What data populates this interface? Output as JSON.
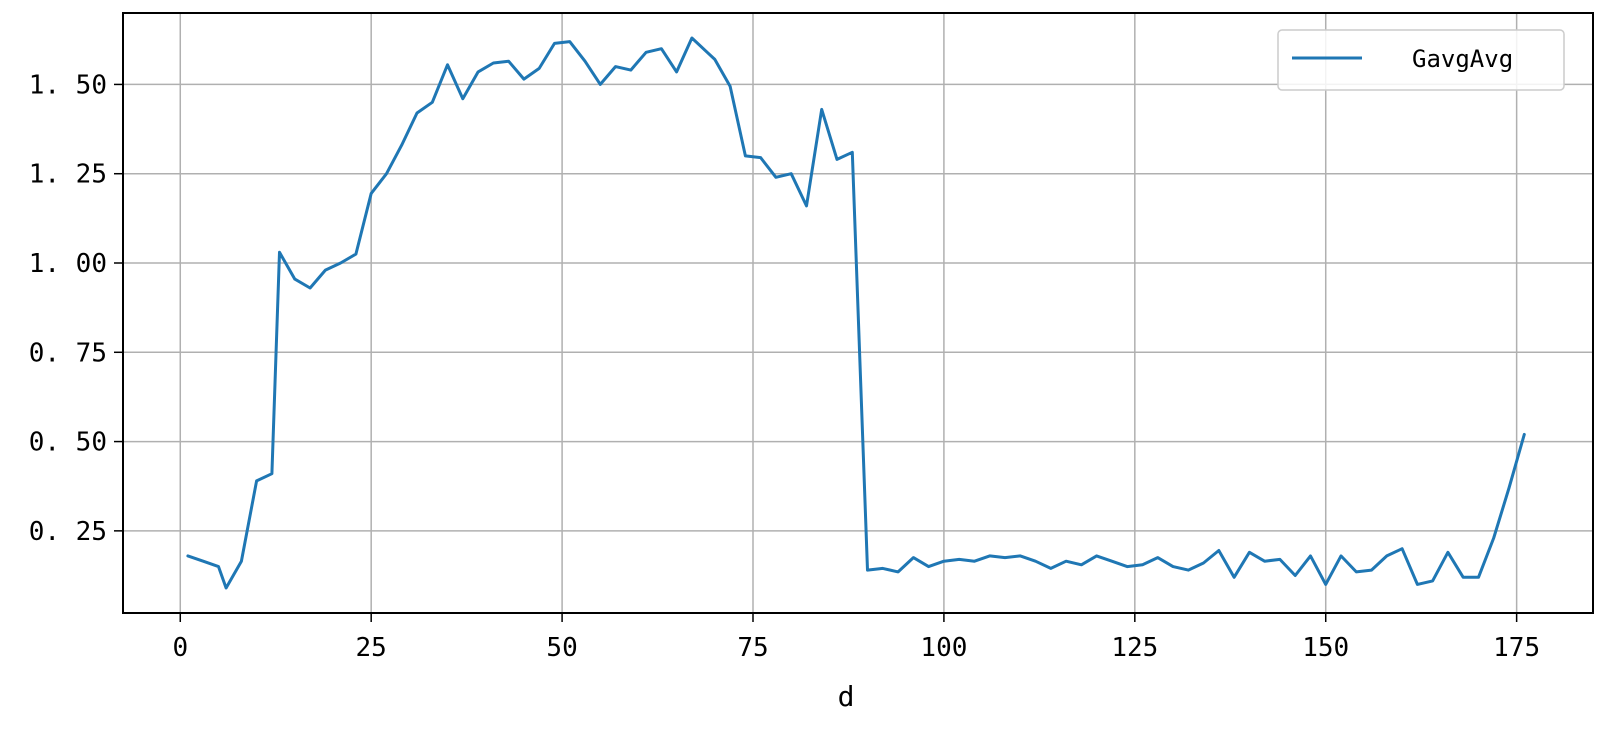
{
  "chart_data": {
    "type": "line",
    "title": "",
    "xlabel": "d",
    "ylabel": "",
    "xlim": [
      -7.5,
      185
    ],
    "ylim": [
      0.02,
      1.7
    ],
    "x_ticks": [
      0,
      25,
      50,
      75,
      100,
      125,
      150,
      175
    ],
    "x_tick_labels": [
      "0",
      "25",
      "50",
      "75",
      "100",
      "125",
      "150",
      "175"
    ],
    "y_ticks": [
      0.25,
      0.5,
      0.75,
      1.0,
      1.25,
      1.5
    ],
    "y_tick_labels": [
      "0. 25",
      "0. 50",
      "0. 75",
      "1. 00",
      "1. 25",
      "1. 50"
    ],
    "grid": true,
    "legend_position": "top-right",
    "series": [
      {
        "name": "GavgAvg",
        "color": "#1f77b4",
        "x": [
          1,
          3,
          5,
          6,
          8,
          10,
          12,
          13,
          15,
          17,
          19,
          21,
          23,
          25,
          27,
          29,
          31,
          33,
          35,
          37,
          39,
          41,
          43,
          45,
          47,
          49,
          51,
          53,
          55,
          57,
          59,
          61,
          63,
          65,
          67,
          69,
          70,
          72,
          74,
          76,
          78,
          80,
          82,
          84,
          86,
          88,
          90,
          92,
          94,
          96,
          98,
          100,
          102,
          104,
          106,
          108,
          110,
          112,
          114,
          116,
          118,
          120,
          122,
          124,
          126,
          128,
          130,
          132,
          134,
          136,
          138,
          140,
          142,
          144,
          146,
          148,
          150,
          152,
          154,
          156,
          158,
          160,
          162,
          164,
          166,
          168,
          170,
          172,
          174,
          176
        ],
        "values": [
          0.18,
          0.165,
          0.15,
          0.09,
          0.165,
          0.39,
          0.41,
          1.03,
          0.955,
          0.93,
          0.98,
          1.0,
          1.025,
          1.195,
          1.25,
          1.33,
          1.42,
          1.45,
          1.555,
          1.46,
          1.535,
          1.56,
          1.565,
          1.515,
          1.545,
          1.615,
          1.62,
          1.565,
          1.5,
          1.55,
          1.54,
          1.59,
          1.6,
          1.535,
          1.63,
          1.59,
          1.57,
          1.495,
          1.3,
          1.295,
          1.24,
          1.25,
          1.16,
          1.43,
          1.29,
          1.31,
          0.14,
          0.145,
          0.135,
          0.175,
          0.15,
          0.165,
          0.17,
          0.165,
          0.18,
          0.175,
          0.18,
          0.165,
          0.145,
          0.165,
          0.155,
          0.18,
          0.165,
          0.15,
          0.155,
          0.175,
          0.15,
          0.14,
          0.16,
          0.195,
          0.12,
          0.19,
          0.165,
          0.17,
          0.125,
          0.18,
          0.1,
          0.18,
          0.135,
          0.14,
          0.18,
          0.2,
          0.1,
          0.11,
          0.19,
          0.12,
          0.12,
          0.23,
          0.37,
          0.52
        ]
      }
    ]
  }
}
